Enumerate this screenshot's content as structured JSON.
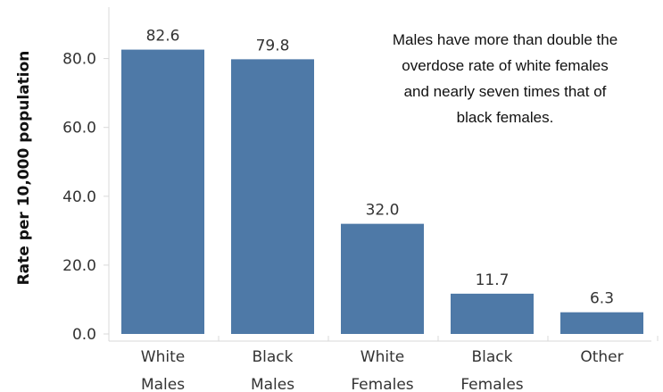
{
  "chart_data": {
    "type": "bar",
    "categories": [
      [
        "White",
        "Males"
      ],
      [
        "Black",
        "Males"
      ],
      [
        "White",
        "Females"
      ],
      [
        "Black",
        "Females"
      ],
      [
        "Other"
      ]
    ],
    "values": [
      82.6,
      79.8,
      32.0,
      11.7,
      6.3
    ],
    "value_labels": [
      "82.6",
      "79.8",
      "32.0",
      "11.7",
      "6.3"
    ],
    "ylabel": "Rate per 10,000 population",
    "yticks": [
      "0.0",
      "20.0",
      "40.0",
      "60.0",
      "80.0"
    ],
    "ytick_values": [
      0,
      20,
      40,
      60,
      80
    ],
    "ylim": [
      0,
      90
    ],
    "annotation": [
      "Males have more than double the",
      "overdose rate of white females",
      "and nearly seven times that of",
      "black females."
    ],
    "bar_color": "#4e79a7",
    "grid": false,
    "legend": "none"
  }
}
